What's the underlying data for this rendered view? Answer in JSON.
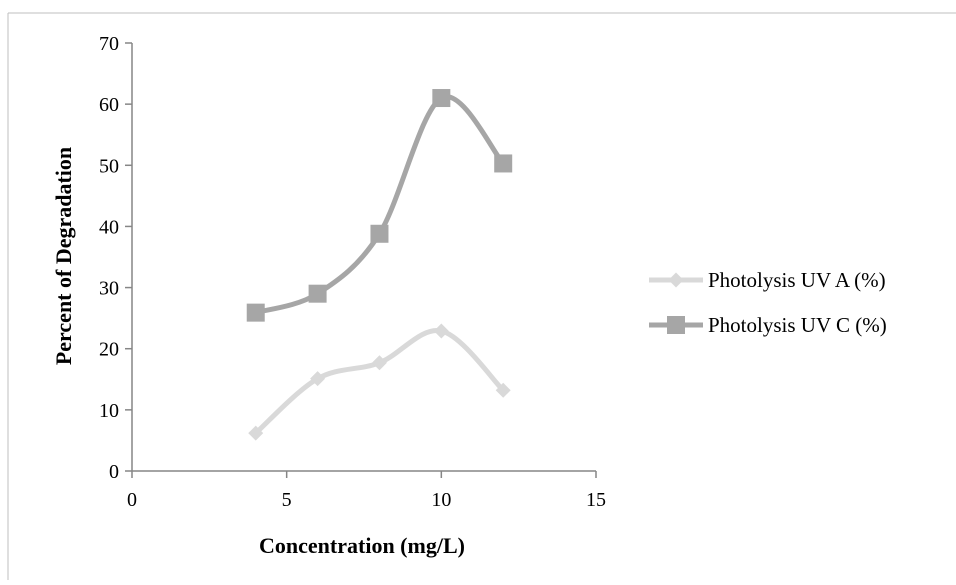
{
  "chart_data": {
    "type": "line",
    "title": "",
    "xlabel": "Concentration (mg/L)",
    "ylabel": "Percent of Degradation",
    "xlim": [
      0,
      15
    ],
    "ylim": [
      0,
      70
    ],
    "xticks": [
      0,
      5,
      10,
      15
    ],
    "yticks": [
      0,
      10,
      20,
      30,
      40,
      50,
      60,
      70
    ],
    "grid": false,
    "smooth": true,
    "legend_position": "right",
    "series": [
      {
        "name": "Photolysis  UV A (%)",
        "marker": "diamond",
        "color": "#d9d9d9",
        "x": [
          4,
          6,
          8,
          10,
          12
        ],
        "y": [
          6.2,
          15.1,
          17.7,
          22.9,
          13.2
        ]
      },
      {
        "name": "Photolysis  UV C (%)",
        "marker": "square",
        "color": "#a6a6a6",
        "x": [
          4,
          6,
          8,
          10,
          12
        ],
        "y": [
          25.9,
          29.0,
          38.8,
          61.0,
          50.3
        ]
      }
    ]
  }
}
